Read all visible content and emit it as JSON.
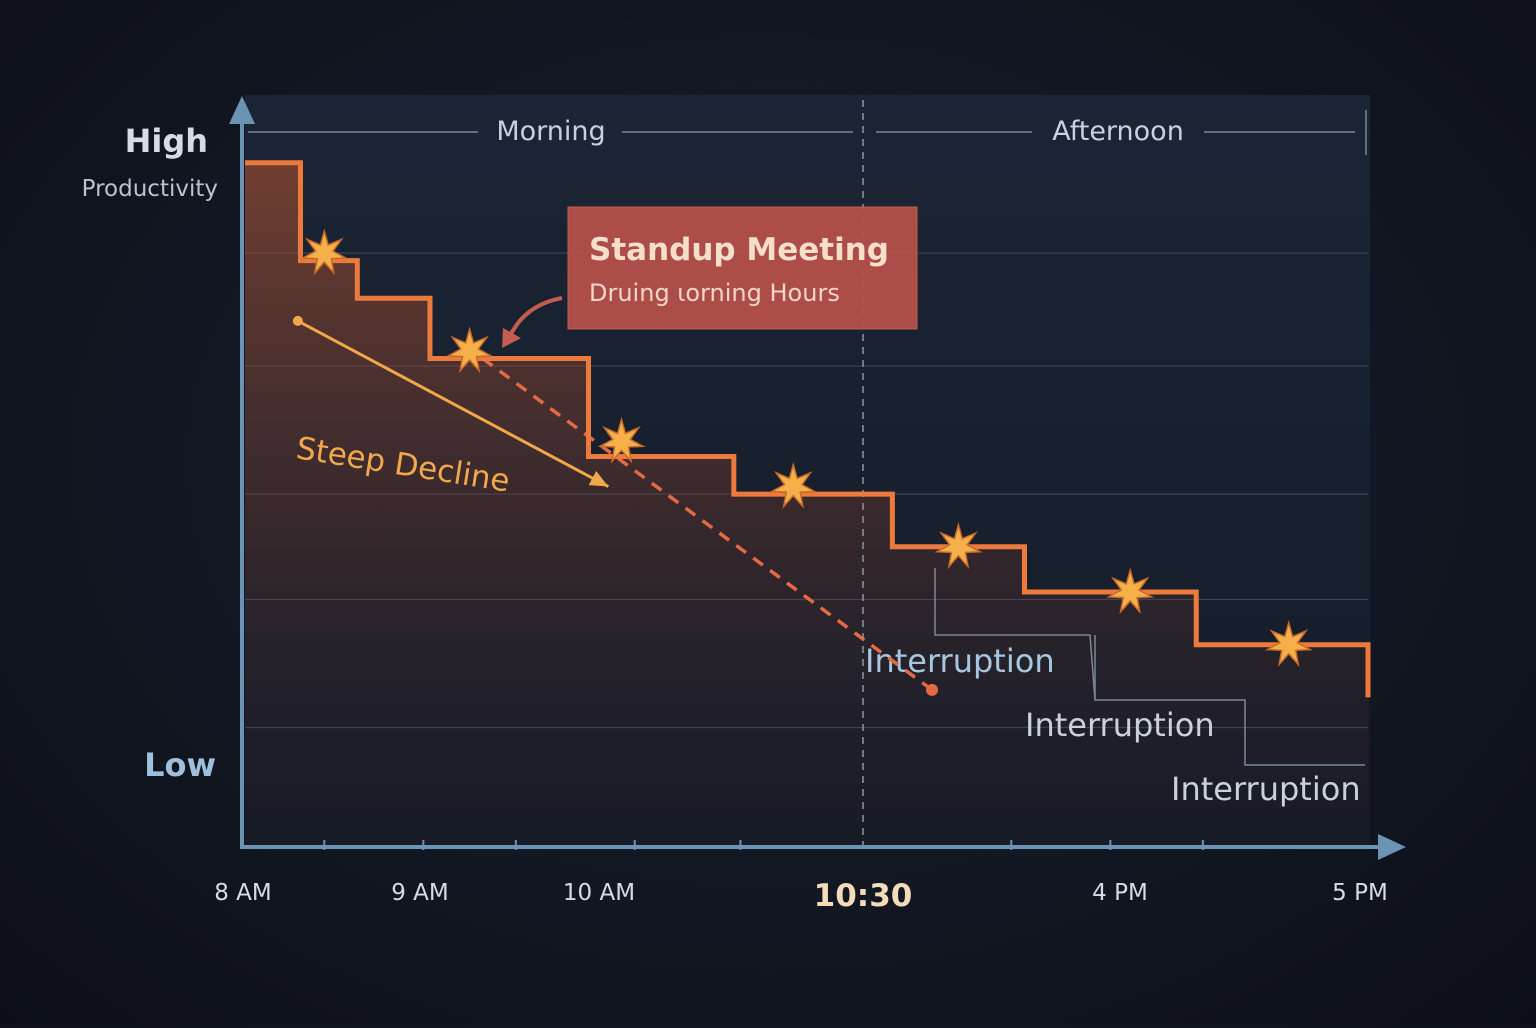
{
  "chart_data": {
    "type": "line",
    "x_ticks": [
      "8 AM",
      "9 AM",
      "10 AM",
      "10:30",
      "4 PM",
      "5 PM"
    ],
    "y_labels": {
      "high": "High",
      "high_sub": "Productivity",
      "low": "Low"
    },
    "periods": [
      "Morning",
      "Afternoon"
    ],
    "productivity_step": [
      {
        "x": 0.0,
        "y": 0.91
      },
      {
        "x": 0.42,
        "y": 0.78
      },
      {
        "x": 0.85,
        "y": 0.73
      },
      {
        "x": 1.4,
        "y": 0.65
      },
      {
        "x": 2.6,
        "y": 0.52
      },
      {
        "x": 3.7,
        "y": 0.47
      },
      {
        "x": 4.9,
        "y": 0.4
      },
      {
        "x": 5.9,
        "y": 0.34
      },
      {
        "x": 7.2,
        "y": 0.27
      },
      {
        "x": 8.5,
        "y": 0.2
      }
    ],
    "interruption_markers": [
      {
        "x": 0.6,
        "y": 0.79
      },
      {
        "x": 1.7,
        "y": 0.66
      },
      {
        "x": 2.85,
        "y": 0.54
      },
      {
        "x": 4.15,
        "y": 0.48
      },
      {
        "x": 5.4,
        "y": 0.4
      },
      {
        "x": 6.7,
        "y": 0.34
      },
      {
        "x": 7.9,
        "y": 0.27
      }
    ],
    "trend_line": {
      "x1": 1.8,
      "y1": 0.65,
      "x2": 5.2,
      "y2": 0.21
    },
    "decline_arrow": {
      "x1": 0.4,
      "y1": 0.7,
      "x2": 2.75,
      "y2": 0.48
    },
    "annotations": {
      "steep_decline": "Steep Decline",
      "meeting_title": "Standup Meeting",
      "meeting_subtitle": "Druing ɩorning Hours",
      "interruption": "Interruption"
    },
    "xlim": [
      0,
      8.5
    ],
    "ylim": [
      0,
      1
    ],
    "grid": true
  },
  "colors": {
    "line": "#ec7a3c",
    "marker": "#f5b04a",
    "decline": "#f0a84a",
    "trend": "#e46a44",
    "axis": "#6b93b4",
    "callout_bg": "#b8514a",
    "grid": "#3a4556",
    "text": "#cdd5df",
    "low_text": "#9fc0dc"
  }
}
